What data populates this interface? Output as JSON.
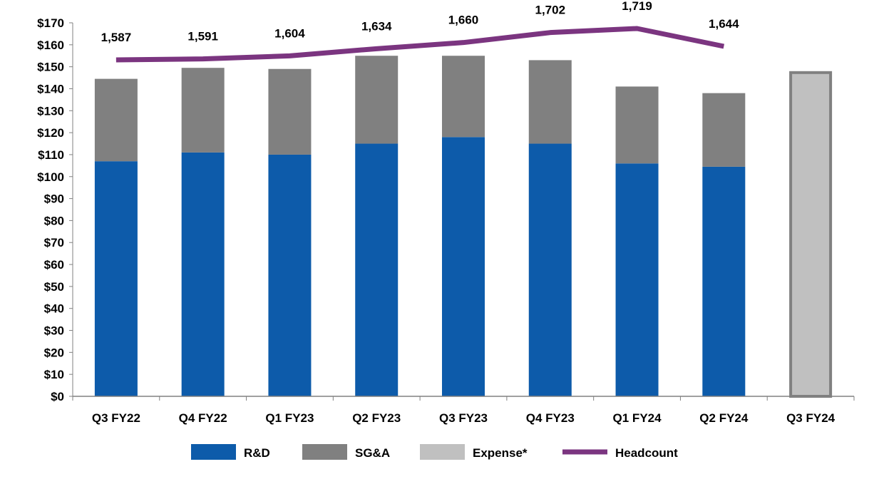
{
  "chart_data": {
    "type": "bar",
    "stacked": true,
    "title": "",
    "xlabel": "",
    "ylabel": "",
    "ylim": [
      0,
      170
    ],
    "y_tick_step": 10,
    "y_tick_prefix": "$",
    "grid": false,
    "legend_placement": "bottom",
    "categories": [
      "Q3 FY22",
      "Q4 FY22",
      "Q1 FY23",
      "Q2 FY23",
      "Q3 FY23",
      "Q4 FY23",
      "Q1 FY24",
      "Q2 FY24",
      "Q3 FY24"
    ],
    "series": [
      {
        "name": "R&D",
        "type": "bar",
        "color": "#0D5BAA",
        "values": [
          107,
          111,
          110,
          115,
          118,
          115,
          106,
          104.5,
          null
        ]
      },
      {
        "name": "SG&A",
        "type": "bar",
        "color": "#808080",
        "values": [
          37.5,
          38.5,
          39,
          40,
          37,
          38,
          35,
          33.5,
          null
        ]
      },
      {
        "name": "Expense*",
        "type": "bar",
        "color": "#C0C0C0",
        "border_color": "#808080",
        "values": [
          null,
          null,
          null,
          null,
          null,
          null,
          null,
          null,
          148
        ]
      },
      {
        "name": "Headcount",
        "type": "line",
        "color": "#7B3580",
        "values": [
          1587,
          1591,
          1604,
          1634,
          1660,
          1702,
          1719,
          1644,
          null
        ],
        "data_labels": [
          "1,587",
          "1,591",
          "1,604",
          "1,634",
          "1,660",
          "1,702",
          "1,719",
          "1,644"
        ]
      }
    ]
  }
}
